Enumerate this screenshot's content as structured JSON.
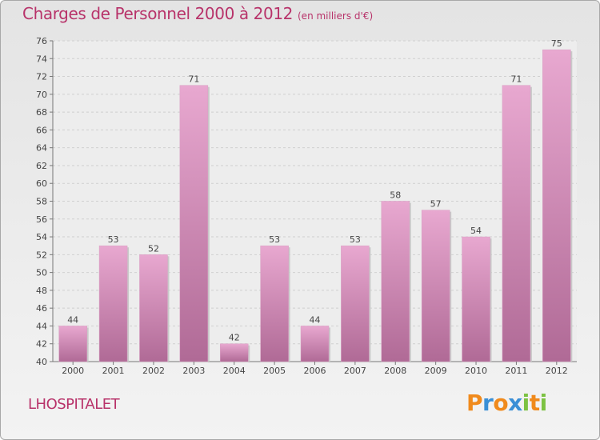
{
  "chart_data": {
    "type": "bar",
    "title": "Charges de Personnel 2000 à 2012",
    "subtitle": "(en milliers d'€)",
    "xlabel": "",
    "ylabel": "",
    "categories": [
      "2000",
      "2001",
      "2002",
      "2003",
      "2004",
      "2005",
      "2006",
      "2007",
      "2008",
      "2009",
      "2010",
      "2011",
      "2012"
    ],
    "values": [
      44,
      53,
      52,
      71,
      42,
      53,
      44,
      53,
      58,
      57,
      54,
      71,
      75
    ],
    "ylim": [
      40,
      76
    ],
    "yticks": [
      40,
      42,
      44,
      46,
      48,
      50,
      52,
      54,
      56,
      58,
      60,
      62,
      64,
      66,
      68,
      70,
      72,
      74,
      76
    ],
    "grid": true,
    "legend": "none",
    "colors": {
      "bar_light": "#e8a8d0",
      "bar_dark": "#b06a96",
      "title": "#b8336a"
    }
  },
  "footer": {
    "commune": "LHOSPITALET",
    "brand_letters": [
      {
        "char": "P",
        "color": "#f08a1c"
      },
      {
        "char": "r",
        "color": "#3a8fd6"
      },
      {
        "char": "o",
        "color": "#f08a1c"
      },
      {
        "char": "x",
        "color": "#3a8fd6"
      },
      {
        "char": "i",
        "color": "#7cc242"
      },
      {
        "char": "t",
        "color": "#f08a1c"
      },
      {
        "char": "i",
        "color": "#7cc242"
      }
    ]
  }
}
